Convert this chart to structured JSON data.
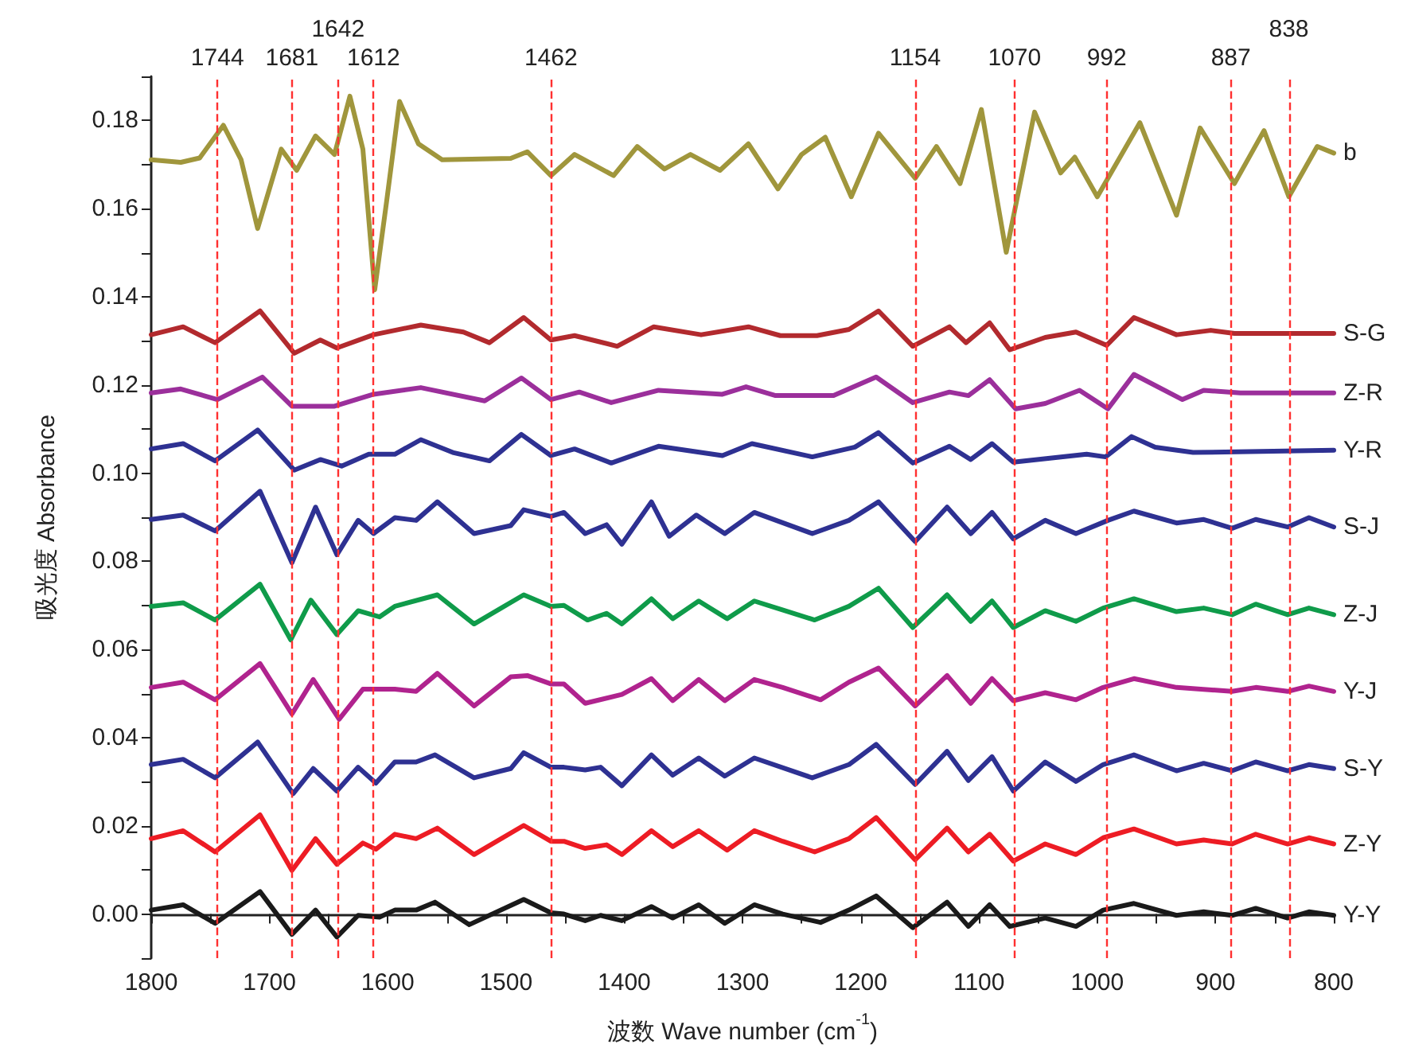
{
  "chart_data": {
    "type": "line",
    "xlabel": "波数 Wave number (cm$^{-1}$)",
    "ylabel": "吸光度 Absorbance",
    "xlim": [
      1800,
      800
    ],
    "xticks": [
      1800,
      {
        "value": 1750,
        "label": null
      },
      1700,
      {
        "value": 1650,
        "label": null
      },
      1600,
      {
        "value": 1550,
        "label": null
      },
      1500,
      {
        "value": 1450,
        "label": null
      },
      1400,
      {
        "value": 1350,
        "label": null
      },
      1300,
      {
        "value": 1250,
        "label": null
      },
      1200,
      {
        "value": 1150,
        "label": null
      },
      1100,
      {
        "value": 1050,
        "label": null
      },
      1000,
      {
        "value": 950,
        "label": null
      },
      900,
      {
        "value": 850,
        "label": null
      },
      800
    ],
    "ylim": [
      -0.01,
      0.19
    ],
    "yticks": [
      {
        "value": -0.01,
        "label": null
      },
      {
        "value": 0,
        "label": "0.00"
      },
      {
        "value": 0.01,
        "label": null
      },
      {
        "value": 0.02,
        "label": "0.02"
      },
      {
        "value": 0.03,
        "label": null
      },
      {
        "value": 0.04,
        "label": "0.04"
      },
      {
        "value": 0.05,
        "label": null
      },
      {
        "value": 0.06,
        "label": "0.06"
      },
      {
        "value": 0.07,
        "label": null
      },
      {
        "value": 0.08,
        "label": "0.08"
      },
      {
        "value": 0.09,
        "label": null
      },
      {
        "value": 0.1,
        "label": "0.10"
      },
      {
        "value": 0.11,
        "label": null
      },
      {
        "value": 0.12,
        "label": "0.12"
      },
      {
        "value": 0.13,
        "label": null
      },
      {
        "value": 0.14,
        "label": "0.14"
      },
      {
        "value": 0.15,
        "label": null
      },
      {
        "value": 0.16,
        "label": "0.16"
      },
      {
        "value": 0.17,
        "label": null
      },
      {
        "value": 0.18,
        "label": "0.18"
      },
      {
        "value": 0.19,
        "label": null
      }
    ],
    "grid": false,
    "legend": false,
    "marker": "none",
    "line_style": "solid",
    "ref_lines": [
      {
        "axis": "x",
        "value": 1744,
        "label": "1744",
        "color": "#ff3030",
        "line_style": "dashed"
      },
      {
        "axis": "x",
        "value": 1681,
        "label": "1681",
        "color": "#ff3030",
        "line_style": "dashed"
      },
      {
        "axis": "x",
        "value": 1642,
        "label": "1642",
        "color": "#ff3030",
        "line_style": "dashed"
      },
      {
        "axis": "x",
        "value": 1612,
        "label": "1612",
        "color": "#ff3030",
        "line_style": "dashed"
      },
      {
        "axis": "x",
        "value": 1462,
        "label": "1462",
        "color": "#ff3030",
        "line_style": "dashed"
      },
      {
        "axis": "x",
        "value": 1154,
        "label": "1154",
        "color": "#ff3030",
        "line_style": "dashed"
      },
      {
        "axis": "x",
        "value": 1070,
        "label": "1070",
        "color": "#ff3030",
        "line_style": "dashed"
      },
      {
        "axis": "x",
        "value": 992,
        "label": "992",
        "color": "#ff3030",
        "line_style": "dashed"
      },
      {
        "axis": "x",
        "value": 887,
        "label": "887",
        "color": "#ff3030",
        "line_style": "dashed"
      },
      {
        "axis": "x",
        "value": 838,
        "label": "838",
        "color": "#ff3030",
        "line_style": "dashed"
      }
    ],
    "series": [
      {
        "name": "b",
        "color": "#a0963c",
        "x": [
          1800,
          1775,
          1759,
          1739,
          1724,
          1710,
          1690,
          1677,
          1661,
          1645,
          1632,
          1621,
          1611,
          1601,
          1590,
          1574,
          1554,
          1496,
          1482,
          1462,
          1442,
          1409,
          1389,
          1366,
          1344,
          1319,
          1295,
          1270,
          1250,
          1230,
          1208,
          1185,
          1154,
          1136,
          1116,
          1098,
          1077,
          1053,
          1031,
          1019,
          1000,
          964,
          933,
          913,
          884,
          859,
          838,
          814,
          800
        ],
        "values": [
          0.1711,
          0.1705,
          0.1715,
          0.1789,
          0.1711,
          0.1555,
          0.1735,
          0.1687,
          0.1765,
          0.1723,
          0.1855,
          0.1735,
          0.1416,
          0.1615,
          0.1843,
          0.1747,
          0.1711,
          0.1714,
          0.1729,
          0.1675,
          0.1723,
          0.1675,
          0.1741,
          0.169,
          0.1723,
          0.1687,
          0.1747,
          0.1645,
          0.1723,
          0.1762,
          0.1627,
          0.1771,
          0.1669,
          0.1741,
          0.1657,
          0.1825,
          0.1501,
          0.1819,
          0.1681,
          0.1717,
          0.1627,
          0.1795,
          0.1585,
          0.1783,
          0.1657,
          0.1777,
          0.1627,
          0.1741,
          0.1726
        ]
      },
      {
        "name": "S-G",
        "color": "#b22a2e",
        "x": [
          1800,
          1773,
          1746,
          1708,
          1679,
          1657,
          1643,
          1612,
          1572,
          1536,
          1514,
          1485,
          1462,
          1442,
          1406,
          1375,
          1335,
          1295,
          1268,
          1237,
          1210,
          1185,
          1156,
          1125,
          1111,
          1091,
          1074,
          1044,
          1018,
          992,
          969,
          933,
          904,
          884,
          800
        ],
        "values": [
          0.1314,
          0.1332,
          0.1296,
          0.1368,
          0.1272,
          0.1302,
          0.1284,
          0.1314,
          0.1336,
          0.132,
          0.1296,
          0.1353,
          0.1302,
          0.1312,
          0.1288,
          0.1332,
          0.1314,
          0.1332,
          0.1312,
          0.1312,
          0.1326,
          0.1368,
          0.1288,
          0.1332,
          0.1296,
          0.1341,
          0.128,
          0.1308,
          0.132,
          0.129,
          0.1353,
          0.1314,
          0.1324,
          0.1317,
          0.1317
        ]
      },
      {
        "name": "Z-R",
        "color": "#9b2f9b",
        "x": [
          1800,
          1775,
          1744,
          1706,
          1681,
          1645,
          1612,
          1572,
          1518,
          1487,
          1462,
          1438,
          1411,
          1371,
          1317,
          1297,
          1272,
          1223,
          1187,
          1156,
          1125,
          1109,
          1091,
          1069,
          1044,
          1015,
          991,
          969,
          928,
          910,
          879,
          800
        ],
        "values": [
          0.1182,
          0.1191,
          0.1167,
          0.1218,
          0.1152,
          0.1152,
          0.1179,
          0.1194,
          0.1164,
          0.1216,
          0.1167,
          0.1184,
          0.116,
          0.1188,
          0.1179,
          0.1196,
          0.1176,
          0.1176,
          0.1218,
          0.116,
          0.1184,
          0.1176,
          0.1212,
          0.1146,
          0.1158,
          0.1188,
          0.1146,
          0.1224,
          0.1167,
          0.1188,
          0.1182,
          0.1182
        ]
      },
      {
        "name": "Y-R",
        "color": "#2e3192",
        "x": [
          1800,
          1773,
          1746,
          1710,
          1679,
          1657,
          1639,
          1616,
          1594,
          1572,
          1545,
          1514,
          1487,
          1462,
          1442,
          1411,
          1371,
          1317,
          1292,
          1241,
          1205,
          1185,
          1156,
          1125,
          1107,
          1089,
          1071,
          1009,
          993,
          971,
          951,
          919,
          800
        ],
        "values": [
          0.1055,
          0.1067,
          0.1028,
          0.1098,
          0.1007,
          0.1031,
          0.1016,
          0.1043,
          0.1043,
          0.1076,
          0.1047,
          0.1028,
          0.1088,
          0.104,
          0.1055,
          0.1023,
          0.1061,
          0.104,
          0.1067,
          0.1037,
          0.1059,
          0.1092,
          0.1023,
          0.1061,
          0.1031,
          0.1067,
          0.1025,
          0.1043,
          0.1037,
          0.1083,
          0.1059,
          0.1047,
          0.1052
        ]
      },
      {
        "name": "S-J",
        "color": "#2e3192",
        "x": [
          1800,
          1773,
          1746,
          1708,
          1681,
          1661,
          1643,
          1625,
          1612,
          1594,
          1576,
          1558,
          1527,
          1496,
          1485,
          1462,
          1451,
          1433,
          1415,
          1402,
          1377,
          1362,
          1339,
          1315,
          1290,
          1241,
          1210,
          1185,
          1154,
          1127,
          1107,
          1089,
          1071,
          1044,
          1018,
          991,
          969,
          933,
          910,
          886,
          866,
          839,
          821,
          800
        ],
        "values": [
          0.0895,
          0.0905,
          0.0869,
          0.0959,
          0.0797,
          0.0923,
          0.0815,
          0.0893,
          0.0863,
          0.0899,
          0.0893,
          0.0935,
          0.0863,
          0.0881,
          0.0917,
          0.0902,
          0.0911,
          0.0863,
          0.0883,
          0.0839,
          0.0935,
          0.0857,
          0.0905,
          0.0863,
          0.0911,
          0.0863,
          0.0893,
          0.0935,
          0.0845,
          0.0923,
          0.0863,
          0.0911,
          0.0851,
          0.0893,
          0.0863,
          0.0893,
          0.0914,
          0.0887,
          0.0895,
          0.0875,
          0.0895,
          0.0878,
          0.0899,
          0.0878
        ]
      },
      {
        "name": "Z-J",
        "color": "#0f9b4a",
        "x": [
          1800,
          1773,
          1746,
          1708,
          1682,
          1665,
          1643,
          1625,
          1607,
          1594,
          1558,
          1527,
          1485,
          1462,
          1451,
          1431,
          1415,
          1402,
          1377,
          1359,
          1337,
          1313,
          1290,
          1239,
          1210,
          1185,
          1156,
          1127,
          1107,
          1089,
          1071,
          1044,
          1018,
          995,
          969,
          933,
          910,
          886,
          866,
          839,
          821,
          800
        ],
        "values": [
          0.0698,
          0.0706,
          0.0667,
          0.0748,
          0.0622,
          0.0712,
          0.0634,
          0.0688,
          0.0674,
          0.0698,
          0.0724,
          0.0658,
          0.0724,
          0.0698,
          0.07,
          0.0667,
          0.0682,
          0.0658,
          0.0715,
          0.067,
          0.071,
          0.067,
          0.071,
          0.0667,
          0.0698,
          0.0739,
          0.065,
          0.0724,
          0.0664,
          0.071,
          0.065,
          0.0688,
          0.0664,
          0.0694,
          0.0715,
          0.0686,
          0.0694,
          0.0679,
          0.0703,
          0.0679,
          0.0694,
          0.0679
        ]
      },
      {
        "name": "Y-J",
        "color": "#b0238e",
        "x": [
          1800,
          1773,
          1746,
          1708,
          1681,
          1663,
          1641,
          1621,
          1594,
          1576,
          1558,
          1527,
          1496,
          1482,
          1462,
          1451,
          1433,
          1402,
          1377,
          1359,
          1337,
          1315,
          1290,
          1266,
          1234,
          1210,
          1185,
          1154,
          1127,
          1107,
          1089,
          1071,
          1044,
          1018,
          995,
          969,
          933,
          886,
          866,
          839,
          821,
          800
        ],
        "values": [
          0.0514,
          0.0526,
          0.0486,
          0.0568,
          0.0454,
          0.0532,
          0.0442,
          0.051,
          0.051,
          0.0505,
          0.0546,
          0.0472,
          0.0538,
          0.0541,
          0.0522,
          0.0522,
          0.0478,
          0.0498,
          0.0534,
          0.0484,
          0.0532,
          0.0484,
          0.0532,
          0.0514,
          0.0486,
          0.0526,
          0.0558,
          0.0472,
          0.0541,
          0.0478,
          0.0534,
          0.0484,
          0.0502,
          0.0486,
          0.0514,
          0.0534,
          0.0514,
          0.0505,
          0.0514,
          0.0505,
          0.0517,
          0.0505
        ]
      },
      {
        "name": "S-Y",
        "color": "#2e3192",
        "x": [
          1800,
          1773,
          1746,
          1710,
          1680,
          1663,
          1643,
          1625,
          1610,
          1594,
          1576,
          1560,
          1527,
          1496,
          1485,
          1462,
          1451,
          1433,
          1420,
          1402,
          1377,
          1359,
          1337,
          1315,
          1290,
          1241,
          1210,
          1187,
          1154,
          1127,
          1109,
          1089,
          1071,
          1044,
          1018,
          995,
          969,
          933,
          910,
          886,
          866,
          839,
          821,
          800
        ],
        "values": [
          0.0339,
          0.0351,
          0.0309,
          0.039,
          0.0273,
          0.033,
          0.0279,
          0.0333,
          0.0297,
          0.0345,
          0.0345,
          0.0361,
          0.0309,
          0.033,
          0.0366,
          0.0333,
          0.0333,
          0.0327,
          0.0333,
          0.0291,
          0.0361,
          0.0315,
          0.0354,
          0.0313,
          0.0354,
          0.0309,
          0.0339,
          0.0385,
          0.0294,
          0.0369,
          0.0303,
          0.0357,
          0.0279,
          0.0345,
          0.0301,
          0.0339,
          0.0361,
          0.0325,
          0.0342,
          0.0325,
          0.0345,
          0.0325,
          0.0339,
          0.033
        ]
      },
      {
        "name": "Z-Y",
        "color": "#ed1c24",
        "x": [
          1800,
          1773,
          1746,
          1708,
          1681,
          1661,
          1643,
          1621,
          1610,
          1594,
          1576,
          1558,
          1527,
          1485,
          1462,
          1451,
          1433,
          1415,
          1402,
          1377,
          1359,
          1337,
          1313,
          1290,
          1266,
          1239,
          1210,
          1187,
          1154,
          1127,
          1109,
          1091,
          1071,
          1044,
          1018,
          995,
          969,
          933,
          910,
          886,
          866,
          839,
          821,
          800
        ],
        "values": [
          0.0171,
          0.0189,
          0.0141,
          0.0225,
          0.0099,
          0.0171,
          0.0113,
          0.0161,
          0.0147,
          0.0181,
          0.0171,
          0.0195,
          0.0135,
          0.0201,
          0.0165,
          0.0165,
          0.0149,
          0.0157,
          0.0135,
          0.0189,
          0.0153,
          0.0189,
          0.0145,
          0.0189,
          0.0165,
          0.0141,
          0.0171,
          0.0219,
          0.0123,
          0.0195,
          0.0141,
          0.0181,
          0.012,
          0.0159,
          0.0135,
          0.0173,
          0.0193,
          0.0159,
          0.0168,
          0.0159,
          0.0181,
          0.0159,
          0.0173,
          0.0159
        ]
      },
      {
        "name": "Y-Y",
        "color": "#1a1a1a",
        "x": [
          1800,
          1773,
          1746,
          1708,
          1681,
          1661,
          1643,
          1625,
          1607,
          1594,
          1576,
          1560,
          1531,
          1485,
          1462,
          1451,
          1433,
          1420,
          1402,
          1377,
          1359,
          1337,
          1315,
          1290,
          1266,
          1234,
          1210,
          1187,
          1156,
          1127,
          1109,
          1091,
          1074,
          1044,
          1018,
          995,
          969,
          933,
          910,
          886,
          866,
          839,
          821,
          800
        ],
        "values": [
          0.0009,
          0.0021,
          -0.0021,
          0.0051,
          -0.0046,
          0.0009,
          -0.0052,
          -0.0003,
          -0.0007,
          0.0009,
          0.0009,
          0.0027,
          -0.0024,
          0.0033,
          0.0003,
          0.0,
          -0.0015,
          -0.0003,
          -0.0015,
          0.0017,
          -0.0009,
          0.0021,
          -0.0021,
          0.0021,
          0.0,
          -0.0019,
          0.0009,
          0.0041,
          -0.0031,
          0.0027,
          -0.0028,
          0.0021,
          -0.0028,
          -0.0009,
          -0.0028,
          0.0009,
          0.0024,
          -0.0003,
          0.0005,
          -0.0003,
          0.0013,
          -0.0009,
          0.0005,
          -0.0003
        ]
      }
    ]
  }
}
